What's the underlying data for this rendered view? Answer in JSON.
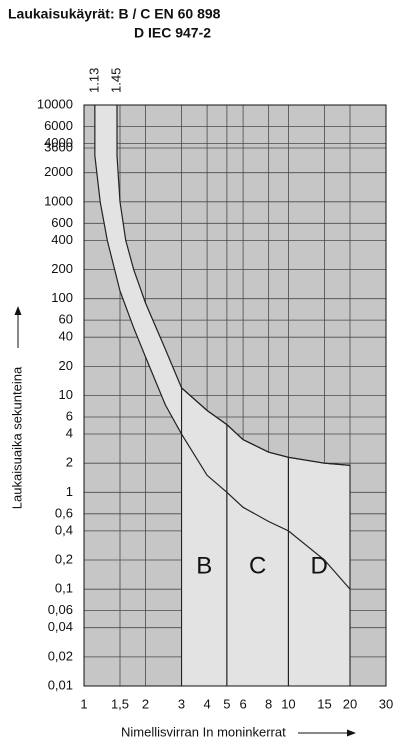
{
  "chart_data": {
    "type": "line",
    "title": "Laukaisukäyrät: B / C EN 60 898",
    "subtitle": "D IEC 947-2",
    "xlabel": "Nimellisvirran In moninkerrat",
    "ylabel": "Laukaisuaika sekunteina",
    "xlog": true,
    "ylog": true,
    "grid": true,
    "xlim": [
      1,
      30
    ],
    "ylim": [
      0.01,
      10000
    ],
    "xticks": [
      1,
      {
        "value": 1.5,
        "label": "1,5"
      },
      2,
      3,
      4,
      5,
      6,
      8,
      10,
      15,
      20,
      30
    ],
    "yticks": [
      10000,
      6000,
      4000,
      3600,
      2000,
      1000,
      600,
      400,
      200,
      100,
      60,
      40,
      20,
      10,
      6,
      4,
      2,
      1,
      {
        "value": 0.6,
        "label": "0,6"
      },
      {
        "value": 0.4,
        "label": "0,4"
      },
      {
        "value": 0.2,
        "label": "0,2"
      },
      {
        "value": 0.1,
        "label": "0,1"
      },
      {
        "value": 0.06,
        "label": "0,06"
      },
      {
        "value": 0.04,
        "label": "0,04"
      },
      {
        "value": 0.02,
        "label": "0,02"
      },
      {
        "value": 0.01,
        "label": "0,01"
      }
    ],
    "top_markers": [
      {
        "value": 1.13,
        "label": "1.13"
      },
      {
        "value": 1.45,
        "label": "1.45"
      }
    ],
    "series": [
      {
        "color": "#222222",
        "x": [
          1.45,
          1.45,
          1.5,
          1.6,
          1.75,
          2,
          2.5,
          3,
          4,
          5,
          6,
          8,
          10,
          15,
          20
        ],
        "values": [
          10000,
          3000,
          1000,
          400,
          200,
          90,
          30,
          12,
          7,
          5,
          3.5,
          2.6,
          2.3,
          2,
          1.9
        ]
      },
      {
        "color": "#222222",
        "x": [
          1.13,
          1.13,
          1.2,
          1.3,
          1.5,
          1.75,
          2,
          2.5,
          3,
          4,
          5,
          6,
          8,
          10,
          15,
          20
        ],
        "values": [
          10000,
          3000,
          1000,
          400,
          120,
          50,
          25,
          8,
          4,
          1.5,
          1,
          0.7,
          0.5,
          0.4,
          0.2,
          0.1
        ]
      }
    ],
    "regions": [
      {
        "label": "B",
        "xrange": [
          3,
          5
        ]
      },
      {
        "label": "C",
        "xrange": [
          5,
          10
        ]
      },
      {
        "label": "D",
        "xrange": [
          10,
          20
        ]
      }
    ]
  }
}
